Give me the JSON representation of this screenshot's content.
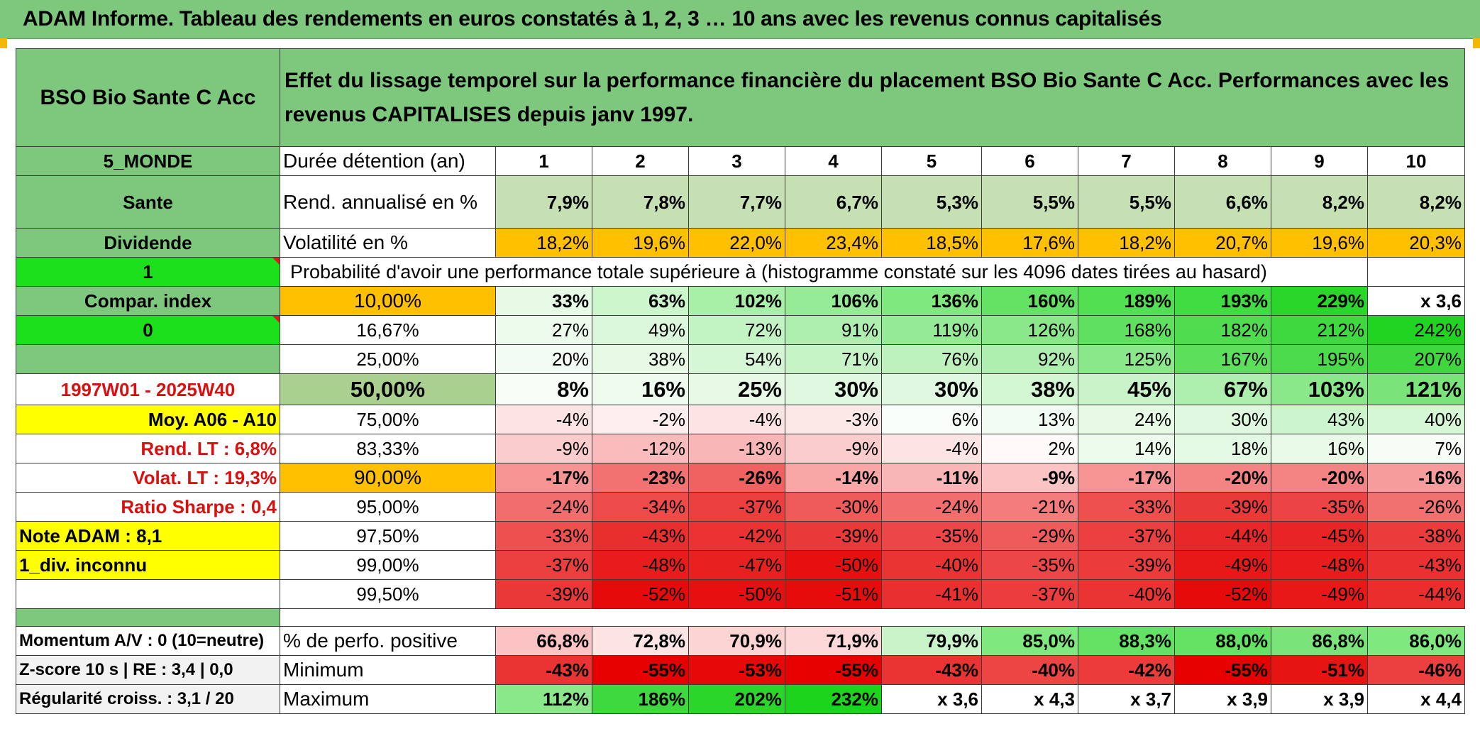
{
  "title": "ADAM Informe. Tableau des rendements en euros constatés à 1, 2, 3 … 10 ans avec les revenus connus capitalisés",
  "fund": {
    "name": "BSO Bio Sante C Acc",
    "description": "Effet du lissage temporel sur la performance financière du placement BSO Bio Sante C Acc. Performances avec les revenus CAPITALISES depuis janv 1997.",
    "zone": "5_MONDE",
    "sector": "Sante",
    "type": "Dividende",
    "param1": "1",
    "compar": "Compar. index",
    "param0": "0",
    "period": "1997W01 - 2025W40",
    "moy": "Moy. A06 - A10",
    "rend_lt": "Rend. LT :   6,8%",
    "volat_lt": "Volat. LT :   19,3%",
    "sharpe": "Ratio Sharpe :   0,4",
    "note": "Note ADAM : 8,1",
    "div": "1_div. inconnu"
  },
  "headers": {
    "duree": "Durée détention (an)",
    "years": [
      "1",
      "2",
      "3",
      "4",
      "5",
      "6",
      "7",
      "8",
      "9",
      "10"
    ]
  },
  "rend": {
    "label": "Rend. annualisé en %",
    "values": [
      "7,9%",
      "7,8%",
      "7,7%",
      "6,7%",
      "5,3%",
      "5,5%",
      "5,5%",
      "6,6%",
      "8,2%",
      "8,2%"
    ]
  },
  "vol": {
    "label": "Volatilité en %",
    "values": [
      "18,2%",
      "19,6%",
      "22,0%",
      "23,4%",
      "18,5%",
      "17,6%",
      "18,2%",
      "20,7%",
      "19,6%",
      "20,3%"
    ]
  },
  "prob_title": "Probabilité d'avoir une performance totale supérieure à (histogramme constaté sur les 4096 dates tirées au hasard)",
  "pct_rows": [
    {
      "label": "10,00%",
      "values": [
        "33%",
        "63%",
        "102%",
        "106%",
        "136%",
        "160%",
        "189%",
        "193%",
        "229%",
        "x 3,6"
      ]
    },
    {
      "label": "16,67%",
      "values": [
        "27%",
        "49%",
        "72%",
        "91%",
        "119%",
        "126%",
        "168%",
        "182%",
        "212%",
        "242%"
      ]
    },
    {
      "label": "25,00%",
      "values": [
        "20%",
        "38%",
        "54%",
        "71%",
        "76%",
        "92%",
        "125%",
        "167%",
        "195%",
        "207%"
      ]
    },
    {
      "label": "50,00%",
      "values": [
        "8%",
        "16%",
        "25%",
        "30%",
        "30%",
        "38%",
        "45%",
        "67%",
        "103%",
        "121%"
      ]
    },
    {
      "label": "75,00%",
      "values": [
        "-4%",
        "-2%",
        "-4%",
        "-3%",
        "6%",
        "13%",
        "24%",
        "30%",
        "43%",
        "40%"
      ]
    },
    {
      "label": "83,33%",
      "values": [
        "-9%",
        "-12%",
        "-13%",
        "-9%",
        "-4%",
        "2%",
        "14%",
        "18%",
        "16%",
        "7%"
      ]
    },
    {
      "label": "90,00%",
      "values": [
        "-17%",
        "-23%",
        "-26%",
        "-14%",
        "-11%",
        "-9%",
        "-17%",
        "-20%",
        "-20%",
        "-16%"
      ]
    },
    {
      "label": "95,00%",
      "values": [
        "-24%",
        "-34%",
        "-37%",
        "-30%",
        "-24%",
        "-21%",
        "-33%",
        "-39%",
        "-35%",
        "-26%"
      ]
    },
    {
      "label": "97,50%",
      "values": [
        "-33%",
        "-43%",
        "-42%",
        "-39%",
        "-35%",
        "-29%",
        "-37%",
        "-44%",
        "-45%",
        "-38%"
      ]
    },
    {
      "label": "99,00%",
      "values": [
        "-37%",
        "-48%",
        "-47%",
        "-50%",
        "-40%",
        "-35%",
        "-39%",
        "-49%",
        "-48%",
        "-43%"
      ]
    },
    {
      "label": "99,50%",
      "values": [
        "-39%",
        "-52%",
        "-50%",
        "-51%",
        "-41%",
        "-37%",
        "-40%",
        "-52%",
        "-49%",
        "-44%"
      ]
    }
  ],
  "bottom": {
    "momentum": "Momentum A/V : 0 (10=neutre)",
    "zscore": "Z-score 10 s | RE : 3,4 | 0,0",
    "regularite": "Régularité croiss. : 3,1 / 20",
    "pos": {
      "label": "% de perfo. positive",
      "values": [
        "66,8%",
        "72,8%",
        "70,9%",
        "71,9%",
        "79,9%",
        "85,0%",
        "88,3%",
        "88,0%",
        "86,8%",
        "86,0%"
      ]
    },
    "min": {
      "label": "Minimum",
      "values": [
        "-43%",
        "-55%",
        "-53%",
        "-55%",
        "-43%",
        "-40%",
        "-42%",
        "-55%",
        "-51%",
        "-46%"
      ]
    },
    "max": {
      "label": "Maximum",
      "values": [
        "112%",
        "186%",
        "202%",
        "232%",
        "x 3,6",
        "x 4,3",
        "x 3,7",
        "x 3,9",
        "x 3,9",
        "x 4,4"
      ]
    }
  },
  "colors": {
    "title_green": "#7ec87e",
    "label_green": "#7ec87e",
    "bright_green": "#1de01d",
    "yellow": "#ffff00",
    "orange": "#ffc000",
    "light_olive": "#a9d08e",
    "rend_green": "#c6e0b4"
  }
}
